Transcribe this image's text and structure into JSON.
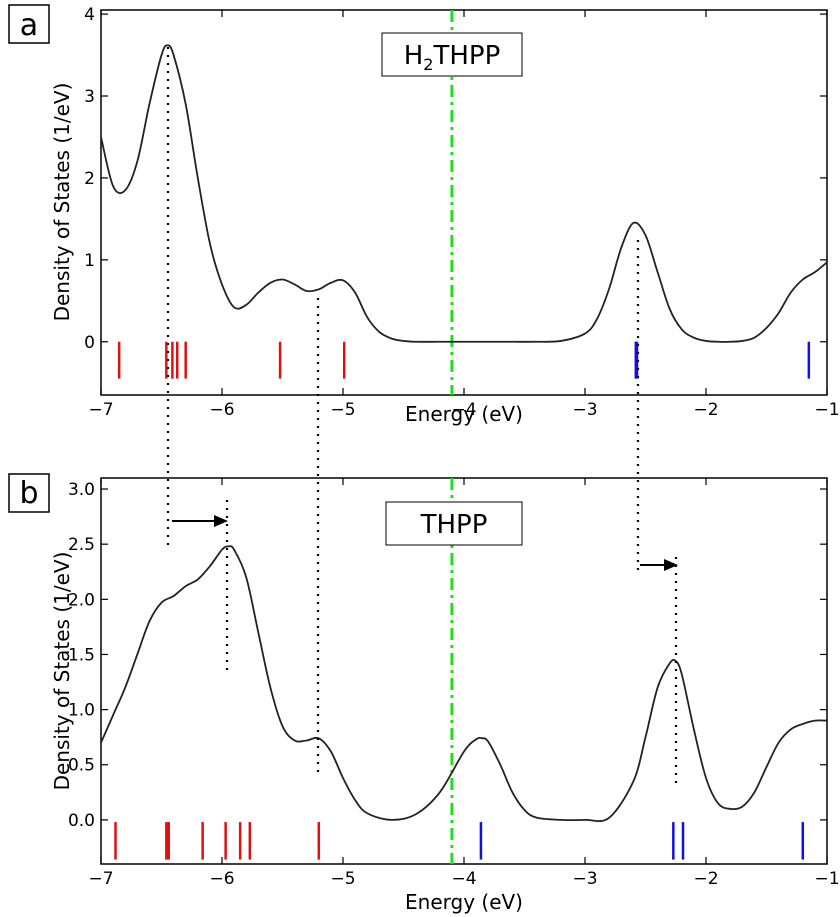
{
  "chart_data": [
    {
      "panel_label": "a",
      "type": "line",
      "title": "H2THPP",
      "title_main": "THPP",
      "title_prefix": "H",
      "title_subscript": "2",
      "xlabel": "Energy (eV)",
      "ylabel": "Density of States (1/eV)",
      "xlim": [
        -7,
        -1
      ],
      "ylim": [
        -0.65,
        4.05
      ],
      "xticks": [
        -7,
        -6,
        -5,
        -4,
        -3,
        -2,
        -1
      ],
      "xtick_labels": [
        "−7",
        "−6",
        "−5",
        "−4",
        "−3",
        "−2",
        "−1"
      ],
      "yticks": [
        0,
        1,
        2,
        3,
        4
      ],
      "ytick_labels": [
        "0",
        "1",
        "2",
        "3",
        "4"
      ],
      "grid": false,
      "fermi_level": -4.1,
      "fermi_color": "#22dd22",
      "curve_color": "#222222",
      "dos_curve": {
        "x": [
          -7.0,
          -6.9,
          -6.8,
          -6.7,
          -6.6,
          -6.5,
          -6.45,
          -6.4,
          -6.3,
          -6.2,
          -6.1,
          -6.0,
          -5.9,
          -5.8,
          -5.7,
          -5.6,
          -5.5,
          -5.4,
          -5.3,
          -5.2,
          -5.1,
          -5.0,
          -4.9,
          -4.8,
          -4.7,
          -4.6,
          -4.5,
          -4.4,
          -4.2,
          -4.0,
          -3.8,
          -3.6,
          -3.4,
          -3.2,
          -3.0,
          -2.9,
          -2.8,
          -2.7,
          -2.6,
          -2.5,
          -2.4,
          -2.3,
          -2.2,
          -2.1,
          -2.0,
          -1.9,
          -1.8,
          -1.7,
          -1.6,
          -1.5,
          -1.4,
          -1.3,
          -1.2,
          -1.1,
          -1.0
        ],
        "y": [
          2.5,
          1.9,
          1.85,
          2.2,
          2.9,
          3.5,
          3.62,
          3.5,
          2.9,
          2.0,
          1.2,
          0.7,
          0.42,
          0.45,
          0.6,
          0.72,
          0.76,
          0.7,
          0.62,
          0.64,
          0.72,
          0.75,
          0.6,
          0.3,
          0.12,
          0.04,
          0.01,
          0.0,
          0.0,
          0.0,
          0.0,
          0.0,
          0.0,
          0.01,
          0.1,
          0.28,
          0.65,
          1.15,
          1.45,
          1.3,
          0.85,
          0.4,
          0.15,
          0.05,
          0.01,
          0.0,
          0.0,
          0.01,
          0.05,
          0.17,
          0.35,
          0.6,
          0.76,
          0.85,
          0.97
        ]
      },
      "occupied_levels": [
        -6.85,
        -6.46,
        -6.41,
        -6.37,
        -6.3,
        -5.52,
        -4.99
      ],
      "unoccupied_levels": [
        -2.58,
        -2.57,
        -1.15
      ],
      "level_y_range": [
        -0.45,
        0.0
      ],
      "occupied_color": "#dd1111",
      "unoccupied_color": "#1111dd"
    },
    {
      "panel_label": "b",
      "type": "line",
      "title": "THPP",
      "xlabel": "Energy (eV)",
      "ylabel": "Density of States (1/eV)",
      "xlim": [
        -7,
        -1
      ],
      "ylim": [
        -0.4,
        3.1
      ],
      "xticks": [
        -7,
        -6,
        -5,
        -4,
        -3,
        -2,
        -1
      ],
      "xtick_labels": [
        "−7",
        "−6",
        "−5",
        "−4",
        "−3",
        "−2",
        "−1"
      ],
      "yticks": [
        0.0,
        0.5,
        1.0,
        1.5,
        2.0,
        2.5,
        3.0
      ],
      "ytick_labels": [
        "0.0",
        "0.5",
        "1.0",
        "1.5",
        "2.0",
        "2.5",
        "3.0"
      ],
      "grid": false,
      "fermi_level": -4.1,
      "fermi_color": "#22dd22",
      "curve_color": "#222222",
      "dos_curve": {
        "x": [
          -7.0,
          -6.9,
          -6.8,
          -6.7,
          -6.6,
          -6.5,
          -6.4,
          -6.3,
          -6.2,
          -6.1,
          -6.0,
          -5.95,
          -5.9,
          -5.8,
          -5.7,
          -5.6,
          -5.5,
          -5.4,
          -5.3,
          -5.2,
          -5.1,
          -5.0,
          -4.9,
          -4.8,
          -4.6,
          -4.4,
          -4.2,
          -4.0,
          -3.9,
          -3.85,
          -3.8,
          -3.7,
          -3.6,
          -3.5,
          -3.4,
          -3.2,
          -3.0,
          -2.8,
          -2.6,
          -2.5,
          -2.4,
          -2.3,
          -2.25,
          -2.2,
          -2.1,
          -2.0,
          -1.9,
          -1.8,
          -1.7,
          -1.6,
          -1.5,
          -1.4,
          -1.3,
          -1.2,
          -1.1,
          -1.0
        ],
        "y": [
          0.7,
          0.95,
          1.2,
          1.5,
          1.8,
          1.97,
          2.03,
          2.12,
          2.18,
          2.3,
          2.45,
          2.48,
          2.45,
          2.2,
          1.7,
          1.2,
          0.85,
          0.72,
          0.72,
          0.74,
          0.62,
          0.38,
          0.18,
          0.06,
          0.0,
          0.05,
          0.25,
          0.62,
          0.73,
          0.74,
          0.71,
          0.5,
          0.25,
          0.09,
          0.02,
          0.0,
          0.0,
          0.02,
          0.35,
          0.75,
          1.2,
          1.42,
          1.44,
          1.32,
          0.82,
          0.38,
          0.15,
          0.1,
          0.12,
          0.25,
          0.48,
          0.7,
          0.82,
          0.87,
          0.9,
          0.9
        ]
      },
      "occupied_levels": [
        -6.88,
        -6.46,
        -6.44,
        -6.16,
        -5.97,
        -5.85,
        -5.77,
        -5.2
      ],
      "unoccupied_levels": [
        -3.86,
        -2.27,
        -2.19,
        -1.2
      ],
      "level_y_range": [
        -0.36,
        -0.02
      ],
      "occupied_color": "#dd1111",
      "unoccupied_color": "#1111dd"
    }
  ]
}
